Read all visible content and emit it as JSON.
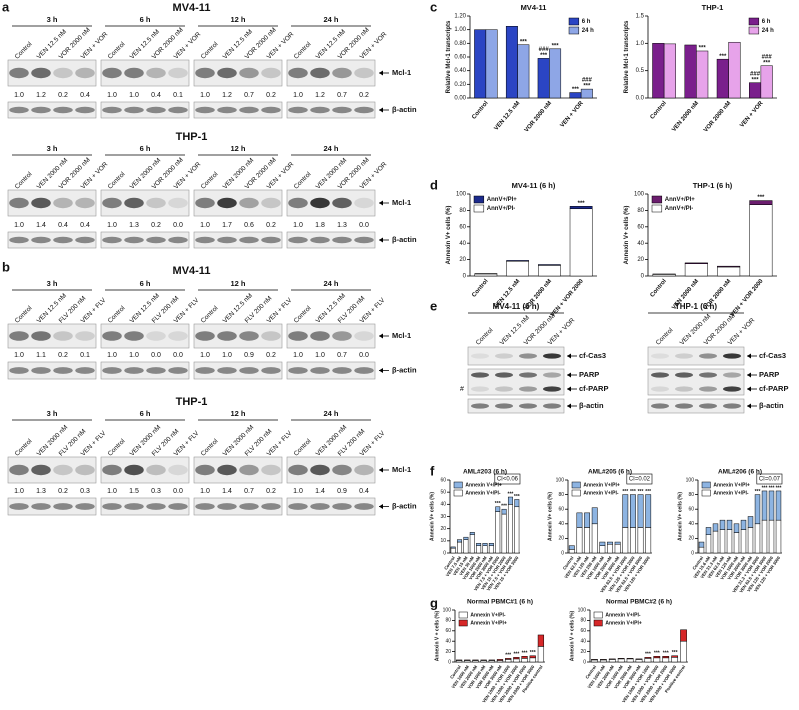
{
  "panel_labels": [
    "a",
    "b",
    "c",
    "d",
    "e",
    "f",
    "g"
  ],
  "blots": [
    {
      "title": "MV4-11",
      "lanes": [
        "Control",
        "VEN 12.5 nM",
        "VOR 2000 nM",
        "VEN + VOR"
      ],
      "rows": [
        "Mcl-1",
        "β-actin"
      ],
      "groups": [
        {
          "time": "3 h",
          "quant": [
            "1.0",
            "1.2",
            "0.2",
            "0.4"
          ]
        },
        {
          "time": "6 h",
          "quant": [
            "1.0",
            "1.0",
            "0.4",
            "0.1"
          ]
        },
        {
          "time": "12 h",
          "quant": [
            "1.0",
            "1.2",
            "0.7",
            "0.2"
          ]
        },
        {
          "time": "24 h",
          "quant": [
            "1.0",
            "1.2",
            "0.7",
            "0.2"
          ]
        }
      ]
    },
    {
      "title": "THP-1",
      "lanes": [
        "Control",
        "VEN 2000 nM",
        "VOR 2000 nM",
        "VEN + VOR"
      ],
      "rows": [
        "Mcl-1",
        "β-actin"
      ],
      "groups": [
        {
          "time": "3 h",
          "quant": [
            "1.0",
            "1.4",
            "0.4",
            "0.4"
          ]
        },
        {
          "time": "6 h",
          "quant": [
            "1.0",
            "1.3",
            "0.2",
            "0.0"
          ]
        },
        {
          "time": "12 h",
          "quant": [
            "1.0",
            "1.7",
            "0.6",
            "0.2"
          ]
        },
        {
          "time": "24 h",
          "quant": [
            "1.0",
            "1.8",
            "1.3",
            "0.0"
          ]
        }
      ]
    },
    {
      "title": "MV4-11",
      "lanes": [
        "Control",
        "VEN 12.5 nM",
        "FLV 200 nM",
        "VEN + FLV"
      ],
      "rows": [
        "Mcl-1",
        "β-actin"
      ],
      "groups": [
        {
          "time": "3 h",
          "quant": [
            "1.0",
            "1.1",
            "0.2",
            "0.1"
          ]
        },
        {
          "time": "6 h",
          "quant": [
            "1.0",
            "1.0",
            "0.0",
            "0.0"
          ]
        },
        {
          "time": "12 h",
          "quant": [
            "1.0",
            "1.0",
            "0.9",
            "0.2"
          ]
        },
        {
          "time": "24 h",
          "quant": [
            "1.0",
            "1.0",
            "0.7",
            "0.0"
          ]
        }
      ]
    },
    {
      "title": "THP-1",
      "lanes": [
        "Control",
        "VEN 2000 nM",
        "FLV 200 nM",
        "VEN + FLV"
      ],
      "rows": [
        "Mcl-1",
        "β-actin"
      ],
      "groups": [
        {
          "time": "3 h",
          "quant": [
            "1.0",
            "1.3",
            "0.2",
            "0.3"
          ]
        },
        {
          "time": "6 h",
          "quant": [
            "1.0",
            "1.5",
            "0.3",
            "0.0"
          ]
        },
        {
          "time": "12 h",
          "quant": [
            "1.0",
            "1.4",
            "0.7",
            "0.2"
          ]
        },
        {
          "time": "24 h",
          "quant": [
            "1.0",
            "1.4",
            "0.9",
            "0.4"
          ]
        }
      ]
    }
  ],
  "blot_e": [
    {
      "title": "MV4-11  (6 h)",
      "lanes": [
        "Control",
        "VEN 12.5 nM",
        "VOR 2000 nM",
        "VEN + VOR"
      ],
      "rows": [
        "cf-Cas3",
        "PARP",
        "cf-PARP",
        "β-actin"
      ],
      "note": "#"
    },
    {
      "title": "THP-1  (6 h)",
      "lanes": [
        "Control",
        "VEN 2000 nM",
        "VOR 2000 nM",
        "VEN + VOR"
      ],
      "rows": [
        "cf-Cas3",
        "PARP",
        "cf-PARP",
        "β-actin"
      ]
    }
  ],
  "chart_data": [
    {
      "type": "bar",
      "title": "MV4-11",
      "ylabel": "Relative Mcl-1 transcripts",
      "categories": [
        "Control",
        "VEN 12.5 nM",
        "VOR 2000 nM",
        "VEN + VOR"
      ],
      "series": [
        {
          "name": "6 h",
          "color": "#2b45c4",
          "values": [
            1.0,
            1.05,
            0.58,
            0.08
          ],
          "sig": [
            null,
            null,
            [
              "###",
              "***"
            ],
            "***"
          ]
        },
        {
          "name": "24 h",
          "color": "#8ea6e6",
          "values": [
            1.0,
            0.78,
            0.72,
            0.13
          ],
          "sig": [
            null,
            "***",
            "***",
            [
              "###",
              "***"
            ]
          ]
        }
      ],
      "ylim": [
        0,
        1.2
      ],
      "yticks": [
        {
          "value": 0,
          "label": "0.00"
        },
        {
          "value": 0.2,
          "label": "0.20"
        },
        {
          "value": 0.4,
          "label": "0.40"
        },
        {
          "value": 0.6,
          "label": "0.60"
        },
        {
          "value": 0.8,
          "label": "0.80"
        },
        {
          "value": 1.0,
          "label": "1.00"
        },
        {
          "value": 1.2,
          "label": "1.20"
        }
      ],
      "legend": "upper right"
    },
    {
      "type": "bar",
      "title": "THP-1",
      "ylabel": "Relative Mcl-1 transcripts",
      "categories": [
        "Control",
        "VEN 2000 nM",
        "VOR 2000 nM",
        "VEN + VOR"
      ],
      "series": [
        {
          "name": "6 h",
          "color": "#7a1f8c",
          "values": [
            1.0,
            0.97,
            0.71,
            0.28
          ],
          "sig": [
            null,
            null,
            "***",
            [
              "###",
              "***"
            ]
          ]
        },
        {
          "name": "24 h",
          "color": "#e7a3ea",
          "values": [
            0.99,
            0.86,
            1.02,
            0.59
          ],
          "sig": [
            null,
            "***",
            null,
            [
              "###",
              "***"
            ]
          ]
        }
      ],
      "ylim": [
        0,
        1.5
      ],
      "yticks": [
        {
          "value": 0,
          "label": "0.0"
        },
        {
          "value": 0.5,
          "label": "0.5"
        },
        {
          "value": 1.0,
          "label": "1.0"
        },
        {
          "value": 1.5,
          "label": "1.5"
        }
      ],
      "legend": "upper right"
    },
    {
      "type": "stacked",
      "title": "MV4-11 (6 h)",
      "ylabel": "Annexin V+ cells (%)",
      "categories": [
        "Control",
        "VEN 12.5 nM",
        "VOR 2000 nM",
        "VEN + VOR 2000"
      ],
      "series": [
        {
          "name": "AnnV+/PI+",
          "color": "#1c2a8c",
          "values": [
            0.5,
            1,
            1,
            3
          ]
        },
        {
          "name": "AnnV+/PI-",
          "color": "#ffffff",
          "values": [
            2.5,
            18,
            13,
            82
          ]
        }
      ],
      "stack_order": "reverse",
      "sig": [
        null,
        null,
        null,
        "***"
      ],
      "ylim": [
        0,
        100
      ],
      "yticks": [
        0,
        20,
        40,
        60,
        80,
        100
      ],
      "legend": "upper left"
    },
    {
      "type": "stacked",
      "title": "THP-1 (6 h)",
      "ylabel": "Annexin V+ cells (%)",
      "categories": [
        "Control",
        "VEN 2000 nM",
        "VOR 2000 nM",
        "VEN + VOR 2000"
      ],
      "series": [
        {
          "name": "AnnV+/PI+",
          "color": "#6b1d6e",
          "values": [
            0.5,
            1,
            1,
            5
          ]
        },
        {
          "name": "AnnV+/PI-",
          "color": "#ffffff",
          "values": [
            2,
            15,
            11,
            87
          ]
        }
      ],
      "stack_order": "reverse",
      "sig": [
        null,
        null,
        null,
        "***"
      ],
      "ylim": [
        0,
        100
      ],
      "yticks": [
        0,
        20,
        40,
        60,
        80,
        100
      ],
      "legend": "upper left"
    },
    {
      "type": "stacked",
      "title": "AML#203 (6 h)",
      "ylabel": "Annexin V+ cells (%)",
      "categories": [
        "Control",
        "VEN 7.5 nM",
        "VEN 15 nM",
        "VEN 30 nM",
        "VOR 1000 nM",
        "VOR 2000 nM",
        "VOR 3000 nM",
        "VEN 7.5 + VOR 2000",
        "VEN 15 + VOR 2000",
        "VEN 7.5 + VOR 3000",
        "VEN 15 + VOR 3000"
      ],
      "series": [
        {
          "name": "Annexin V+/PI+",
          "color": "#8db4e2",
          "values": [
            1,
            2,
            2,
            2,
            2,
            2,
            2,
            4,
            4,
            6,
            6
          ]
        },
        {
          "name": "Annexin V+/PI-",
          "color": "#ffffff",
          "values": [
            4,
            9,
            11,
            15,
            6,
            6,
            6,
            34,
            32,
            40,
            38
          ]
        }
      ],
      "stack_order": "reverse",
      "sig": [
        null,
        null,
        null,
        null,
        null,
        null,
        null,
        "***",
        "***",
        "***",
        "***"
      ],
      "annotation": "CI<0.06",
      "ylim": [
        0,
        60
      ],
      "yticks": [
        0,
        10,
        20,
        30,
        40,
        50,
        60
      ],
      "legend": "upper left"
    },
    {
      "type": "stacked",
      "title": "AML#205 (6 h)",
      "ylabel": "Annexin V+ cells (%)",
      "categories": [
        "Control",
        "VEN 62.5 nM",
        "VEN 125 nM",
        "VEN 250 nM",
        "VOR 1000 nM",
        "VOR 2000 nM",
        "VOR 3000 nM",
        "VEN 62.5 + VOR 2000",
        "VEN 125 + VOR 2000",
        "VEN 62.5 + VOR 3000",
        "VEN 125 + VOR 3000"
      ],
      "series": [
        {
          "name": "Annexin V+/PI+",
          "color": "#8db4e2",
          "values": [
            5,
            20,
            20,
            22,
            5,
            3,
            3,
            45,
            45,
            45,
            45
          ]
        },
        {
          "name": "Annexin V+/PI-",
          "color": "#ffffff",
          "values": [
            5,
            35,
            35,
            40,
            10,
            12,
            12,
            35,
            35,
            35,
            35
          ]
        }
      ],
      "stack_order": "reverse",
      "sig": [
        null,
        null,
        null,
        null,
        null,
        null,
        null,
        "***",
        "***",
        "***",
        "***"
      ],
      "annotation": "CI=0.02",
      "ylim": [
        0,
        100
      ],
      "yticks": [
        0,
        20,
        40,
        60,
        80,
        100
      ],
      "legend": "upper left"
    },
    {
      "type": "stacked",
      "title": "AML#206 (6 h)",
      "ylabel": "Annexin V+ cells (%)",
      "categories": [
        "Control",
        "VEN 15.6 nM",
        "VEN 31.3 nM",
        "VEN 62.5 nM",
        "VEN 125 nM",
        "VOR 1000 nM",
        "VOR 2000 nM",
        "VOR 3000 nM",
        "VEN 31.3 + VOR 3000",
        "VEN 62.5 + VOR 3000",
        "VEN 125 + VOR 2000",
        "VEN 125 + VOR 3000"
      ],
      "series": [
        {
          "name": "Annexin V+/PI+",
          "color": "#8db4e2",
          "values": [
            7,
            10,
            10,
            13,
            13,
            12,
            13,
            15,
            40,
            40,
            40,
            40
          ]
        },
        {
          "name": "Annexin V+/PI-",
          "color": "#ffffff",
          "values": [
            8,
            25,
            30,
            32,
            32,
            28,
            32,
            35,
            40,
            45,
            45,
            45
          ]
        }
      ],
      "stack_order": "reverse",
      "sig": [
        null,
        null,
        null,
        null,
        null,
        null,
        null,
        null,
        "***",
        "***",
        "***",
        "***"
      ],
      "annotation": "CI=0.07",
      "ylim": [
        0,
        100
      ],
      "yticks": [
        0,
        20,
        40,
        60,
        80,
        100
      ],
      "legend": "upper left"
    },
    {
      "type": "stacked",
      "title": "Normal PBMC#1 (6 h)",
      "ylabel": "Annexin V + cells (%)",
      "categories": [
        "Control",
        "VEN 1000 nM",
        "VEN 2000 nM",
        "VOR 1000 nM",
        "VOR 2000 nM",
        "VOR 3000 nM",
        "VEN 1000 + VOR 1000",
        "VEN 1000 + VOR 2000",
        "VEN 2000 + VOR 2000",
        "VEN 2000 + VOR 3000",
        "Positive control"
      ],
      "series": [
        {
          "name": "Annexin V+/PI-",
          "color": "#ffffff",
          "values": [
            3,
            3,
            3,
            3,
            3,
            3,
            5,
            6,
            7,
            8,
            30
          ]
        },
        {
          "name": "Annexin V+/PI+",
          "color": "#d62728",
          "values": [
            1,
            1,
            1,
            1,
            1,
            2,
            2,
            3,
            4,
            4,
            22
          ]
        }
      ],
      "stack_order": "forward",
      "sig": [
        null,
        null,
        null,
        null,
        null,
        null,
        "***",
        "***",
        "***",
        "***",
        null
      ],
      "ylim": [
        0,
        100
      ],
      "yticks": [
        0,
        20,
        40,
        60,
        80,
        100
      ],
      "legend": "upper left"
    },
    {
      "type": "stacked",
      "title": "Normal PBMC#2 (6 h)",
      "ylabel": "Annexin V + cells (%)",
      "categories": [
        "Control",
        "VEN 1000 nM",
        "VEN 2000 nM",
        "VOR 1000 nM",
        "VOR 2000 nM",
        "VOR 3000 nM",
        "VEN 1000 + VOR 1000",
        "VEN 1000 + VOR 2000",
        "VEN 2000 + VOR 2000",
        "VEN 2000 + VOR 3000",
        "Positive control"
      ],
      "series": [
        {
          "name": "Annexin V+/PI-",
          "color": "#ffffff",
          "values": [
            4,
            4,
            5,
            6,
            6,
            5,
            7,
            8,
            8,
            9,
            40
          ]
        },
        {
          "name": "Annexin V+/PI+",
          "color": "#d62728",
          "values": [
            1,
            1,
            1,
            1,
            1,
            1,
            2,
            3,
            3,
            3,
            22
          ]
        }
      ],
      "stack_order": "forward",
      "sig": [
        null,
        null,
        null,
        null,
        null,
        null,
        "***",
        "***",
        "***",
        "***",
        null
      ],
      "ylim": [
        0,
        100
      ],
      "yticks": [
        0,
        20,
        40,
        60,
        80,
        100
      ],
      "legend": "upper left"
    }
  ]
}
